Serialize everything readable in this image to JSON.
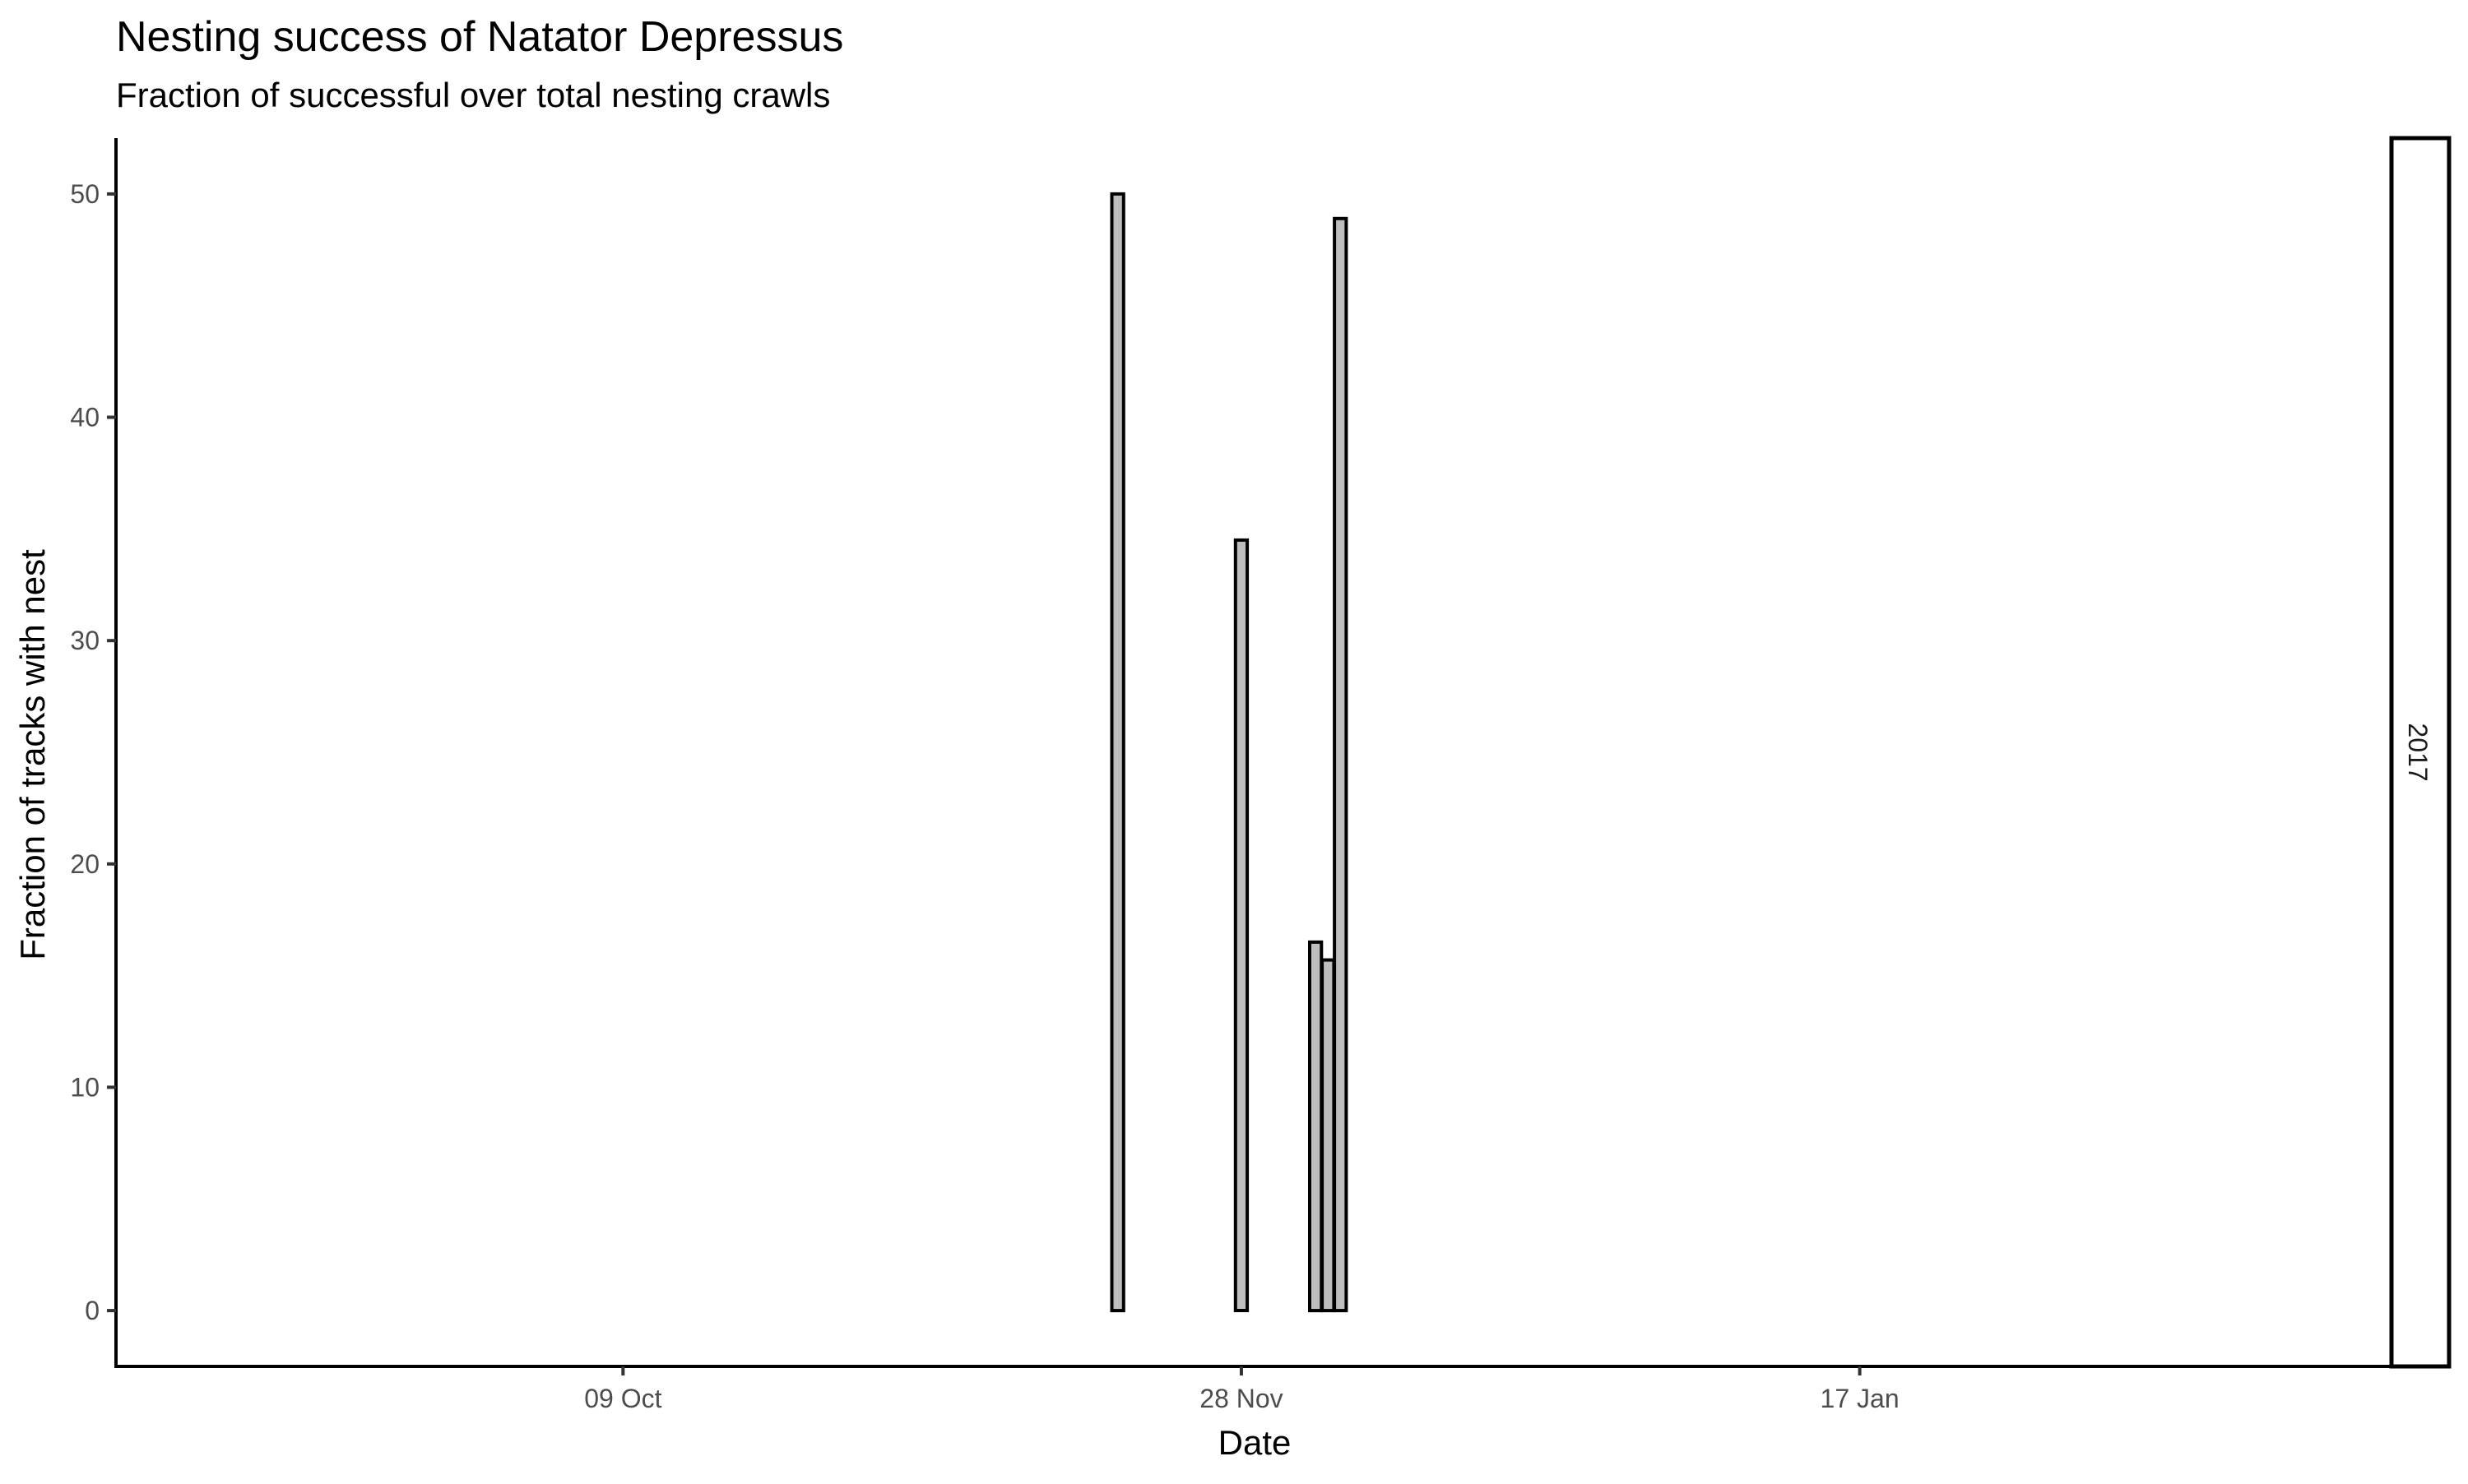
{
  "chart_data": {
    "type": "bar",
    "title": "Nesting success of Natator Depressus",
    "subtitle": "Fraction of successful over total nesting crawls",
    "xlabel": "Date",
    "ylabel": "Fraction of tracks with nest",
    "facet_label": "2017",
    "x_is_date": true,
    "x_range": [
      "2017-08-29",
      "2018-03-01"
    ],
    "ylim": [
      -2.5,
      52.5
    ],
    "y_ticks": [
      0,
      10,
      20,
      30,
      40,
      50
    ],
    "y_tick_labels": [
      "0",
      "10",
      "20",
      "30",
      "40",
      "50"
    ],
    "x_ticks": [
      "2017-10-09",
      "2017-11-28",
      "2018-01-17"
    ],
    "x_tick_labels": [
      "09 Oct",
      "28 Nov",
      "17 Jan"
    ],
    "grid": false,
    "bar_fill": "#bebebe",
    "bar_outline": "#000000",
    "x": [
      "2017-09-06",
      "2017-10-18",
      "2017-10-26",
      "2017-10-27",
      "2017-11-18",
      "2017-11-20",
      "2017-11-28",
      "2017-12-04",
      "2017-12-05",
      "2017-12-06",
      "2018-02-19"
    ],
    "values": [
      0,
      0,
      0,
      0,
      50.0,
      0,
      34.5,
      16.5,
      15.7,
      48.9,
      0
    ]
  }
}
